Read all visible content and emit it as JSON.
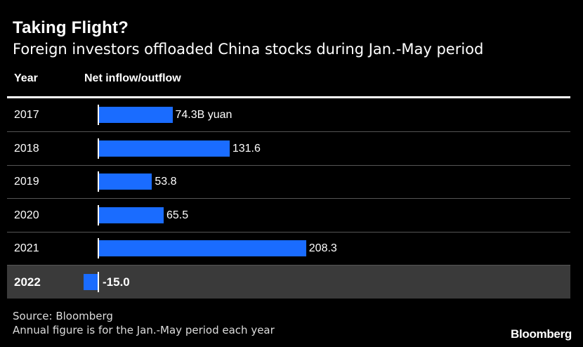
{
  "title": "Taking Flight?",
  "subtitle": "Foreign investors offloaded China stocks during Jan.-May period",
  "headers": {
    "year": "Year",
    "flow": "Net inflow/outflow"
  },
  "source": "Source: Bloomberg",
  "note": "Annual figure is for the Jan.-May period each year",
  "brand": "Bloomberg",
  "colors": {
    "bar": "#1a6cff",
    "highlight_row": "#3a3a3a",
    "background": "#000000"
  },
  "chart_data": {
    "type": "bar",
    "orientation": "horizontal",
    "title": "Taking Flight?",
    "subtitle": "Foreign investors offloaded China stocks during Jan.-May period",
    "categories": [
      "2017",
      "2018",
      "2019",
      "2020",
      "2021",
      "2022"
    ],
    "values": [
      74.3,
      131.6,
      53.8,
      65.5,
      208.3,
      -15.0
    ],
    "labels": [
      "74.3B yuan",
      "131.6",
      "53.8",
      "65.5",
      "208.3",
      "-15.0"
    ],
    "highlight": "2022",
    "grid": false
  }
}
